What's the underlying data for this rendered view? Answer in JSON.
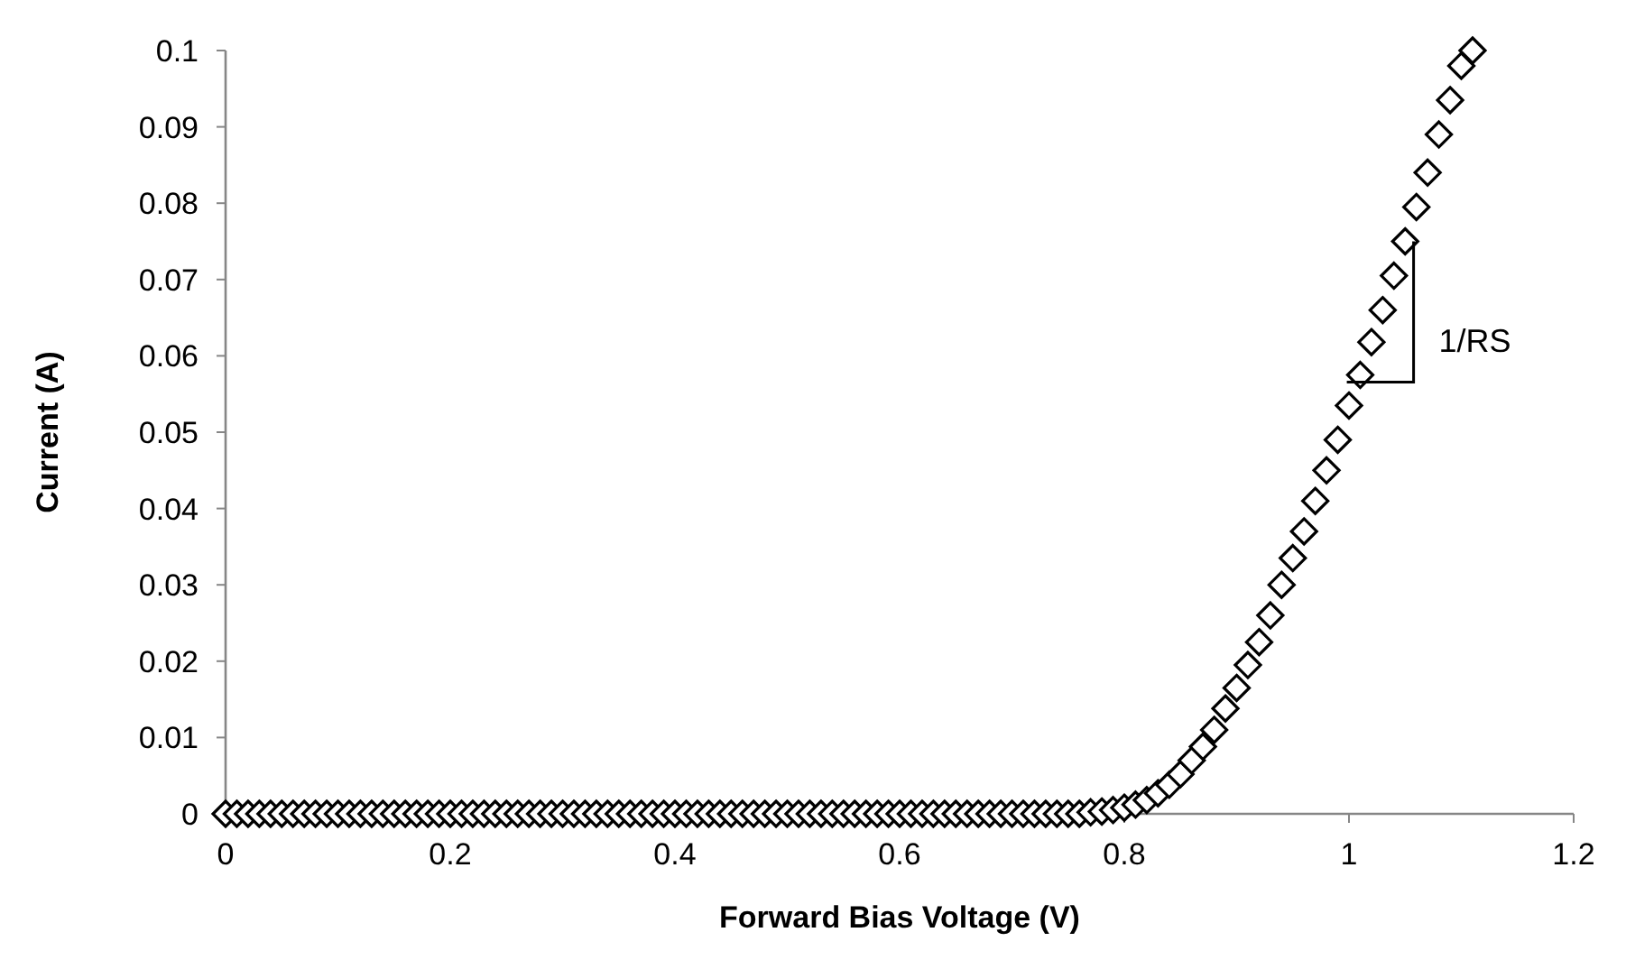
{
  "chart_data": {
    "type": "scatter",
    "xlabel": "Forward Bias Voltage (V)",
    "ylabel": "Current (A)",
    "xlim": [
      0,
      1.2
    ],
    "xticks": [
      0,
      0.2,
      0.4,
      0.6,
      0.8,
      1,
      1.2
    ],
    "ylim": [
      0,
      0.1
    ],
    "yticks": [
      0,
      0.01,
      0.02,
      0.03,
      0.04,
      0.05,
      0.06,
      0.07,
      0.08,
      0.09,
      0.1
    ],
    "grid": false,
    "marker": "diamond",
    "annotations": [
      "1/RS"
    ],
    "series": [
      {
        "color": "#000000",
        "x": [
          0,
          0.01,
          0.02,
          0.03,
          0.04,
          0.05,
          0.06,
          0.07,
          0.08,
          0.09,
          0.1,
          0.11,
          0.12,
          0.13,
          0.14,
          0.15,
          0.16,
          0.17,
          0.18,
          0.19,
          0.2,
          0.21,
          0.22,
          0.23,
          0.24,
          0.25,
          0.26,
          0.27,
          0.28,
          0.29,
          0.3,
          0.31,
          0.32,
          0.33,
          0.34,
          0.35,
          0.36,
          0.37,
          0.38,
          0.39,
          0.4,
          0.41,
          0.42,
          0.43,
          0.44,
          0.45,
          0.46,
          0.47,
          0.48,
          0.49,
          0.5,
          0.51,
          0.52,
          0.53,
          0.54,
          0.55,
          0.56,
          0.57,
          0.58,
          0.59,
          0.6,
          0.61,
          0.62,
          0.63,
          0.64,
          0.65,
          0.66,
          0.67,
          0.68,
          0.69,
          0.7,
          0.71,
          0.72,
          0.73,
          0.74,
          0.75,
          0.76,
          0.77,
          0.78,
          0.79,
          0.8,
          0.81,
          0.82,
          0.83,
          0.84,
          0.85,
          0.86,
          0.87,
          0.88,
          0.89,
          0.9,
          0.91,
          0.92,
          0.93,
          0.94,
          0.95,
          0.96,
          0.97,
          0.98,
          0.99,
          1,
          1.01,
          1.02,
          1.03,
          1.04,
          1.05,
          1.06,
          1.07,
          1.08,
          1.09,
          1.1,
          1.11
        ],
        "values": [
          0,
          0,
          0,
          0,
          0,
          0,
          0,
          0,
          0,
          0,
          0,
          0,
          0,
          0,
          0,
          0,
          0,
          0,
          0,
          0,
          0,
          0,
          0,
          0,
          0,
          0,
          0,
          0,
          0,
          0,
          0,
          0,
          0,
          0,
          0,
          0,
          0,
          0,
          0,
          0,
          0,
          0,
          0,
          0,
          0,
          0,
          0,
          0,
          0,
          0,
          0,
          0,
          0,
          0,
          0,
          0,
          0,
          0,
          0,
          0,
          0,
          0,
          0,
          0,
          0,
          0,
          0,
          0,
          0,
          0,
          0,
          0,
          0,
          0,
          0,
          0,
          0,
          0.0002,
          0.0003,
          0.0005,
          0.0008,
          0.0012,
          0.0018,
          0.0027,
          0.0038,
          0.0052,
          0.007,
          0.0088,
          0.011,
          0.0138,
          0.0165,
          0.0195,
          0.0225,
          0.026,
          0.03,
          0.0335,
          0.037,
          0.041,
          0.045,
          0.049,
          0.0535,
          0.0575,
          0.0618,
          0.066,
          0.0705,
          0.075,
          0.0795,
          0.084,
          0.089,
          0.0935,
          0.098,
          0.1
        ]
      }
    ]
  }
}
